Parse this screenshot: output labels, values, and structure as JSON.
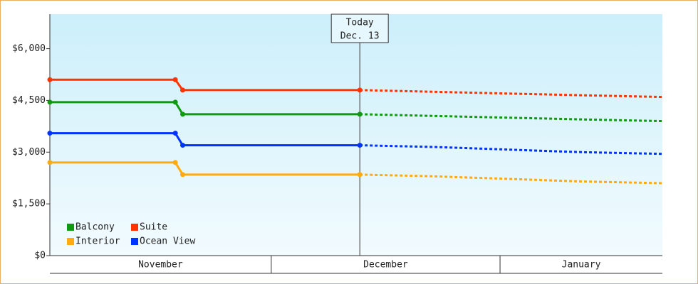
{
  "chart_data": {
    "type": "line",
    "ylim": [
      0,
      7000
    ],
    "yticks": [
      {
        "value": 0,
        "label": "$0"
      },
      {
        "value": 1500,
        "label": "$1,500"
      },
      {
        "value": 3000,
        "label": "$3,000"
      },
      {
        "value": 4500,
        "label": "$4,500"
      },
      {
        "value": 6000,
        "label": "$6,000"
      }
    ],
    "xlim": [
      0,
      83
    ],
    "month_bands": [
      {
        "label": "November",
        "start": 0,
        "end": 30
      },
      {
        "label": "December",
        "start": 30,
        "end": 61
      },
      {
        "label": "January",
        "start": 61,
        "end": 83
      }
    ],
    "annotation": {
      "lines": [
        "Today",
        "Dec. 13"
      ],
      "x": 42
    },
    "legend": "bottom-left",
    "series": [
      {
        "name": "Balcony",
        "color": "#119911",
        "x": [
          0,
          17,
          18,
          42
        ],
        "values": [
          4450,
          4450,
          4100,
          4100
        ],
        "forecast_x": [
          42,
          52,
          62,
          72,
          83
        ],
        "forecast": [
          4100,
          4050,
          4000,
          3950,
          3900
        ]
      },
      {
        "name": "Suite",
        "color": "#ff3300",
        "x": [
          0,
          17,
          18,
          42
        ],
        "values": [
          5100,
          5100,
          4800,
          4800
        ],
        "forecast_x": [
          42,
          52,
          62,
          72,
          83
        ],
        "forecast": [
          4800,
          4750,
          4700,
          4650,
          4600
        ]
      },
      {
        "name": "Interior",
        "color": "#ffaa11",
        "x": [
          0,
          17,
          18,
          42
        ],
        "values": [
          2700,
          2700,
          2350,
          2350
        ],
        "forecast_x": [
          42,
          52,
          62,
          72,
          83
        ],
        "forecast": [
          2350,
          2300,
          2225,
          2150,
          2100
        ]
      },
      {
        "name": "Ocean View",
        "color": "#0033ff",
        "x": [
          0,
          17,
          18,
          42
        ],
        "values": [
          3550,
          3550,
          3200,
          3200
        ],
        "forecast_x": [
          42,
          52,
          62,
          72,
          83
        ],
        "forecast": [
          3200,
          3150,
          3075,
          3000,
          2950
        ]
      }
    ]
  }
}
